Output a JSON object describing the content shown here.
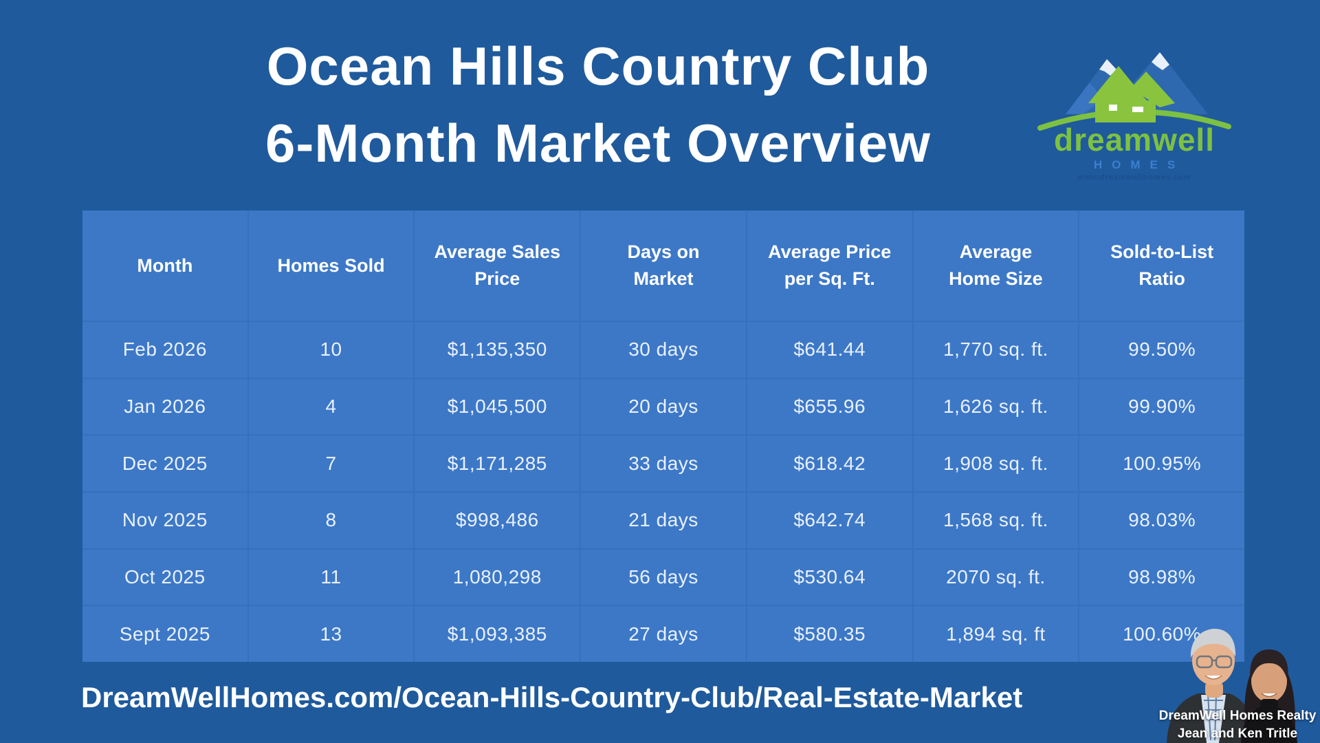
{
  "page": {
    "title_line1": "Ocean Hills Country Club",
    "title_line2": "6-Month Market Overview",
    "footer_url": "DreamWellHomes.com/Ocean-Hills-Country-Club/Real-Estate-Market"
  },
  "logo": {
    "brand": "dreamwell",
    "sub": "HOMES",
    "tagline": "www.dreamwellhomes.com"
  },
  "table": {
    "columns": [
      "Month",
      "Homes Sold",
      "Average Sales\nPrice",
      "Days on\nMarket",
      "Average Price\nper Sq. Ft.",
      "Average\nHome Size",
      "Sold-to-List\nRatio"
    ],
    "rows": [
      [
        "Feb 2026",
        "10",
        "$1,135,350",
        "30 days",
        "$641.44",
        "1,770 sq. ft.",
        "99.50%"
      ],
      [
        "Jan 2026",
        "4",
        "$1,045,500",
        "20 days",
        "$655.96",
        "1,626 sq. ft.",
        "99.90%"
      ],
      [
        "Dec 2025",
        "7",
        "$1,171,285",
        "33 days",
        "$618.42",
        "1,908 sq. ft.",
        "100.95%"
      ],
      [
        "Nov 2025",
        "8",
        "$998,486",
        "21 days",
        "$642.74",
        "1,568 sq. ft.",
        "98.03%"
      ],
      [
        "Oct 2025",
        "11",
        "1,080,298",
        "56 days",
        "$530.64",
        "2070 sq. ft.",
        "98.98%"
      ],
      [
        "Sept 2025",
        "13",
        "$1,093,385",
        "27 days",
        "$580.35",
        "1,894 sq. ft",
        "100.60%"
      ]
    ]
  },
  "photo_caption": {
    "line1": "DreamWell Homes Realty",
    "line2": "Jean and Ken Tritle"
  },
  "colors": {
    "background": "#1f5a9c",
    "cell": "#3d78c7",
    "line": "#3570bc",
    "text": "#ffffff",
    "logo_green": "#7dc142",
    "logo_blue": "#3c7fd0"
  }
}
